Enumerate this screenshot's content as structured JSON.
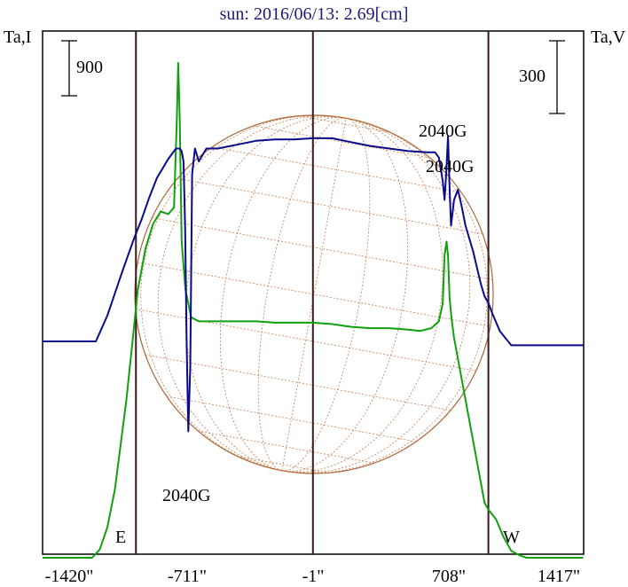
{
  "chart_data": {
    "type": "line",
    "title": "sun: 2016/06/13: 2.69[cm]",
    "left_axis_label": "Ta,I",
    "right_axis_label": "Ta,V",
    "left_scale_bar": "900",
    "right_scale_bar": "300",
    "x_tick_labels": [
      "-1420\"",
      "-711\"",
      "-1\"",
      "708\"",
      "1417\""
    ],
    "x_ticks": [
      -1420,
      -711,
      -1,
      708,
      1417
    ],
    "xlim": [
      -1420,
      1417
    ],
    "limb_markers": [
      {
        "label": "E",
        "x": -930
      },
      {
        "label": "W",
        "x": 920
      }
    ],
    "annotations": [
      {
        "text": "2040G",
        "x": -630,
        "near": "I dip"
      },
      {
        "text": "2040G",
        "x": 708,
        "near": "V peak"
      },
      {
        "text": "2040G",
        "x": 708,
        "near": "I peak"
      }
    ],
    "series": [
      {
        "name": "Ta,I",
        "color": "#0a0a8c",
        "x": [
          -1420,
          -1140,
          -1080,
          -1000,
          -940,
          -900,
          -860,
          -820,
          -760,
          -720,
          -700,
          -690,
          -680,
          -672,
          -664,
          -655,
          -645,
          -635,
          -620,
          -600,
          -560,
          -500,
          -400,
          -300,
          -200,
          -100,
          -1,
          100,
          200,
          300,
          400,
          500,
          600,
          640,
          660,
          680,
          690,
          700,
          708,
          716,
          724,
          740,
          760,
          780,
          800,
          840,
          880,
          900,
          920,
          940,
          980,
          1040,
          1100,
          1417
        ],
        "y": [
          0,
          0,
          0.2,
          0.55,
          0.8,
          0.95,
          1.12,
          1.27,
          1.42,
          1.5,
          1.5,
          1.48,
          1.4,
          0.9,
          0.0,
          -0.7,
          -0.2,
          1.3,
          1.5,
          1.4,
          1.5,
          1.5,
          1.53,
          1.56,
          1.57,
          1.57,
          1.58,
          1.58,
          1.55,
          1.52,
          1.5,
          1.48,
          1.47,
          1.47,
          1.43,
          1.25,
          1.1,
          1.35,
          1.6,
          1.2,
          0.9,
          1.1,
          1.18,
          1.05,
          0.9,
          0.7,
          0.45,
          0.35,
          0.3,
          0.22,
          0.08,
          -0.03,
          -0.03,
          -0.03
        ]
      },
      {
        "name": "Ta,V",
        "color": "#10a010",
        "x": [
          -1420,
          -1200,
          -1160,
          -1120,
          -1080,
          -1040,
          -980,
          -950,
          -920,
          -880,
          -840,
          -800,
          -760,
          -730,
          -715,
          -708,
          -700,
          -690,
          -670,
          -640,
          -600,
          -560,
          -500,
          -400,
          -300,
          -200,
          -100,
          -1,
          100,
          200,
          300,
          400,
          500,
          560,
          620,
          660,
          680,
          690,
          700,
          708,
          716,
          726,
          740,
          760,
          780,
          800,
          820,
          840,
          860,
          880,
          900,
          920,
          960,
          1000,
          1040,
          1080,
          1120,
          1160,
          1417
        ],
        "y": [
          -1.0,
          -1.0,
          -1.0,
          -0.94,
          -0.78,
          -0.5,
          0.15,
          0.55,
          0.95,
          1.25,
          1.43,
          1.52,
          1.5,
          1.55,
          2.2,
          2.6,
          2.2,
          1.3,
          0.95,
          0.75,
          0.72,
          0.72,
          0.72,
          0.72,
          0.72,
          0.71,
          0.71,
          0.71,
          0.7,
          0.68,
          0.67,
          0.67,
          0.66,
          0.65,
          0.67,
          0.72,
          0.85,
          1.2,
          1.3,
          1.2,
          0.9,
          0.75,
          0.6,
          0.45,
          0.3,
          0.15,
          0.0,
          -0.15,
          -0.3,
          -0.45,
          -0.6,
          -0.65,
          -0.72,
          -0.85,
          -0.95,
          -0.98,
          -1.0,
          -1.0,
          -1.0
        ]
      }
    ]
  }
}
